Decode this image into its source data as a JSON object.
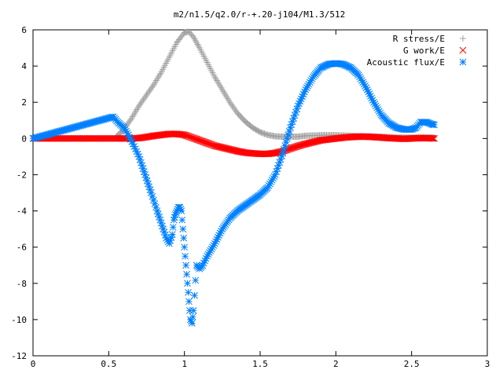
{
  "chart_data": {
    "type": "scatter",
    "title": "m2/n1.5/q2.0/r-+.20-j104/M1.3/512",
    "xlabel": "",
    "ylabel": "",
    "xlim": [
      0,
      3
    ],
    "ylim": [
      -12,
      6
    ],
    "x_ticks": [
      0,
      0.5,
      1,
      1.5,
      2,
      2.5,
      3
    ],
    "x_tick_labels": [
      "0",
      "0.5",
      "1",
      "1.5",
      "2",
      "2.5",
      "3"
    ],
    "y_ticks": [
      -12,
      -10,
      -8,
      -6,
      -4,
      -2,
      0,
      2,
      4,
      6
    ],
    "y_tick_labels": [
      "-12",
      "-10",
      "-8",
      "-6",
      "-4",
      "-2",
      "0",
      "2",
      "4",
      "6"
    ],
    "grid": false,
    "legend_position": "top-right",
    "series": [
      {
        "name": "R stress/E",
        "marker": "plus",
        "color": "#a0a0a0",
        "x": [
          0.55,
          0.6,
          0.65,
          0.7,
          0.75,
          0.8,
          0.85,
          0.9,
          0.95,
          1.0,
          1.03,
          1.06,
          1.1,
          1.15,
          1.2,
          1.25,
          1.3,
          1.35,
          1.4,
          1.45,
          1.5,
          1.55,
          1.6,
          1.65,
          1.7,
          1.75,
          1.8,
          1.9,
          2.0,
          2.1,
          2.2,
          2.3,
          2.4,
          2.5,
          2.6,
          2.65
        ],
        "y": [
          0.1,
          0.5,
          1.1,
          1.8,
          2.4,
          3.0,
          3.7,
          4.5,
          5.3,
          5.85,
          5.9,
          5.6,
          5.0,
          4.2,
          3.4,
          2.7,
          2.0,
          1.4,
          0.95,
          0.6,
          0.35,
          0.2,
          0.12,
          0.1,
          0.1,
          0.1,
          0.15,
          0.18,
          0.18,
          0.15,
          0.12,
          0.1,
          0.05,
          0.05,
          0.05,
          0.05
        ]
      },
      {
        "name": "G work/E",
        "marker": "cross",
        "color": "#ff0000",
        "x": [
          0.0,
          0.55,
          0.6,
          0.65,
          0.7,
          0.75,
          0.8,
          0.85,
          0.9,
          0.95,
          1.0,
          1.05,
          1.1,
          1.15,
          1.2,
          1.25,
          1.3,
          1.35,
          1.4,
          1.45,
          1.5,
          1.55,
          1.6,
          1.65,
          1.7,
          1.75,
          1.8,
          1.85,
          1.9,
          1.95,
          2.0,
          2.05,
          2.1,
          2.15,
          2.2,
          2.25,
          2.3,
          2.35,
          2.4,
          2.45,
          2.5,
          2.55,
          2.6,
          2.65
        ],
        "y": [
          0.0,
          0.0,
          0.0,
          0.0,
          0.02,
          0.08,
          0.15,
          0.2,
          0.25,
          0.25,
          0.2,
          0.05,
          -0.1,
          -0.25,
          -0.4,
          -0.5,
          -0.6,
          -0.7,
          -0.78,
          -0.82,
          -0.85,
          -0.85,
          -0.8,
          -0.7,
          -0.55,
          -0.42,
          -0.3,
          -0.2,
          -0.1,
          -0.05,
          0.0,
          0.05,
          0.08,
          0.1,
          0.1,
          0.08,
          0.05,
          0.02,
          0.0,
          -0.02,
          0.0,
          0.02,
          0.02,
          0.0
        ]
      },
      {
        "name": "Acoustic flux/E",
        "marker": "star",
        "color": "#0080ff",
        "x": [
          0.0,
          0.53,
          0.56,
          0.6,
          0.63,
          0.66,
          0.7,
          0.74,
          0.78,
          0.82,
          0.86,
          0.88,
          0.9,
          0.92,
          0.93,
          0.94,
          0.95,
          0.96,
          0.97,
          0.98,
          0.99,
          1.0,
          1.01,
          1.02,
          1.03,
          1.04,
          1.05,
          1.06,
          1.08,
          1.1,
          1.12,
          1.15,
          1.2,
          1.25,
          1.3,
          1.35,
          1.4,
          1.45,
          1.5,
          1.55,
          1.6,
          1.65,
          1.7,
          1.75,
          1.8,
          1.85,
          1.9,
          1.95,
          2.0,
          2.05,
          2.1,
          2.15,
          2.2,
          2.25,
          2.3,
          2.35,
          2.4,
          2.45,
          2.5,
          2.53,
          2.56,
          2.6,
          2.63,
          2.65
        ],
        "y": [
          0.0,
          1.2,
          0.9,
          0.6,
          0.2,
          -0.3,
          -1.0,
          -2.0,
          -3.0,
          -4.0,
          -5.0,
          -5.5,
          -5.8,
          -5.3,
          -4.5,
          -4.2,
          -4.0,
          -3.8,
          -3.8,
          -4.0,
          -5.0,
          -6.0,
          -7.0,
          -8.0,
          -9.0,
          -10.0,
          -10.2,
          -9.5,
          -7.0,
          -7.2,
          -7.0,
          -6.5,
          -5.8,
          -5.0,
          -4.4,
          -4.0,
          -3.7,
          -3.4,
          -3.1,
          -2.7,
          -2.0,
          -0.8,
          0.6,
          1.8,
          2.7,
          3.4,
          3.9,
          4.1,
          4.15,
          4.1,
          3.9,
          3.5,
          2.8,
          2.0,
          1.3,
          0.85,
          0.6,
          0.5,
          0.5,
          0.6,
          0.9,
          0.9,
          0.8,
          0.75
        ]
      }
    ]
  }
}
